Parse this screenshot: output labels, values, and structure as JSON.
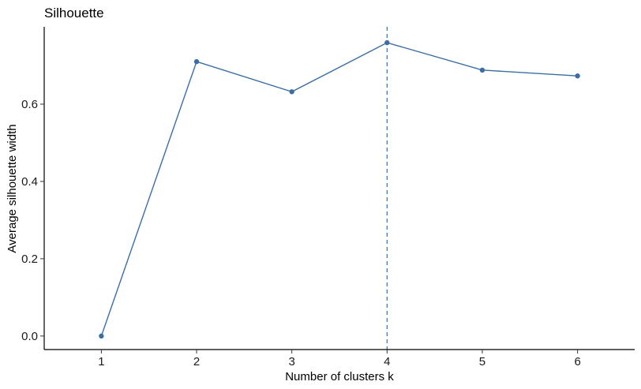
{
  "chart_data": {
    "type": "line",
    "title": "Silhouette",
    "xlabel": "Number of clusters k",
    "ylabel": "Average silhouette width",
    "x": [
      1,
      2,
      3,
      4,
      5,
      6
    ],
    "x_tick_labels": [
      "1",
      "2",
      "3",
      "4",
      "5",
      "6"
    ],
    "y_tick_values": [
      0.0,
      0.2,
      0.4,
      0.6
    ],
    "y_tick_labels": [
      "0.0",
      "0.2",
      "0.4",
      "0.6"
    ],
    "ylim": [
      -0.035,
      0.8
    ],
    "xlim": [
      0.4,
      6.6
    ],
    "series": [
      {
        "values": [
          0.0,
          0.71,
          0.632,
          0.759,
          0.688,
          0.673
        ]
      }
    ],
    "vline_x": 4,
    "grid": false,
    "legend": "none",
    "colors": {
      "series": "#3A6EA5",
      "axis": "#000000"
    }
  }
}
